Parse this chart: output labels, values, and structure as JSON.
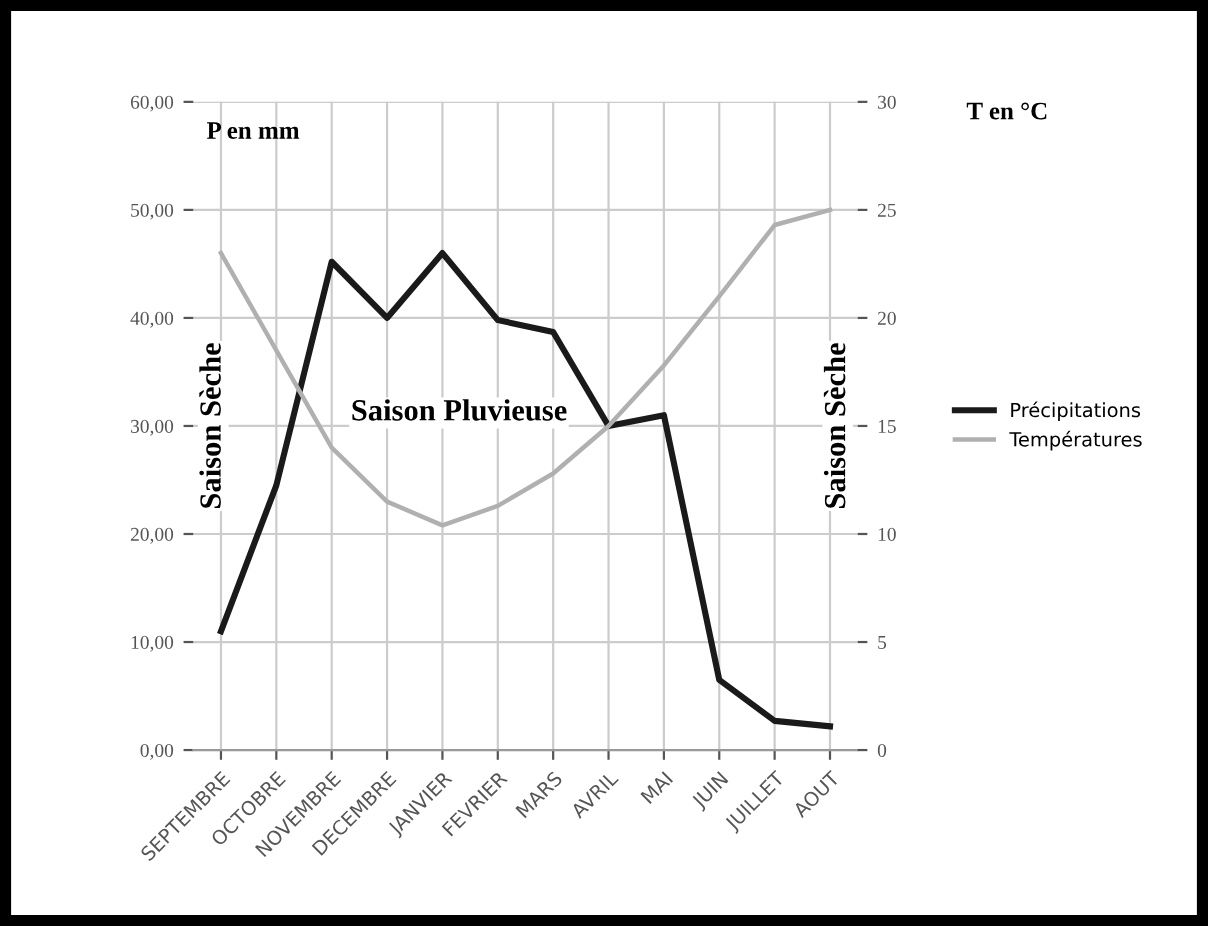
{
  "chart_data": {
    "type": "line",
    "categories": [
      "SEPTEMBRE",
      "OCTOBRE",
      "NOVEMBRE",
      "DECEMBRE",
      "JANVIER",
      "FEVRIER",
      "MARS",
      "AVRIL",
      "MAI",
      "JUIN",
      "JUILLET",
      "AOUT"
    ],
    "series": [
      {
        "name": "Précipitations",
        "color": "#1a1a1a",
        "values": [
          11,
          24.5,
          45.2,
          40,
          46,
          39.8,
          38.7,
          30,
          31,
          6.5,
          2.7,
          2.2
        ]
      },
      {
        "name": "Températures",
        "color": "#b0b0b0",
        "axis": "y2",
        "values": [
          23,
          18.5,
          14,
          11.5,
          10.4,
          11.3,
          12.8,
          15,
          17.8,
          21,
          24.3,
          25
        ]
      }
    ],
    "ylabel": "P en mm",
    "y2label": "T en °C",
    "ylim": [
      0,
      60
    ],
    "yticks": [
      {
        "value": 0,
        "label": "0,00"
      },
      {
        "value": 10,
        "label": "10,00"
      },
      {
        "value": 20,
        "label": "20,00"
      },
      {
        "value": 30,
        "label": "30,00"
      },
      {
        "value": 40,
        "label": "40,00"
      },
      {
        "value": 50,
        "label": "50,00"
      },
      {
        "value": 60,
        "label": "60,00"
      }
    ],
    "y2lim": [
      0,
      30
    ],
    "y2ticks": [
      0,
      5,
      10,
      15,
      20,
      25,
      30
    ],
    "annotations": [
      "Saison Sèche",
      "Saison Pluvieuse",
      "Saison Sèche"
    ],
    "grid": true,
    "legend": "right",
    "marker": "none",
    "line_style": "solid"
  }
}
